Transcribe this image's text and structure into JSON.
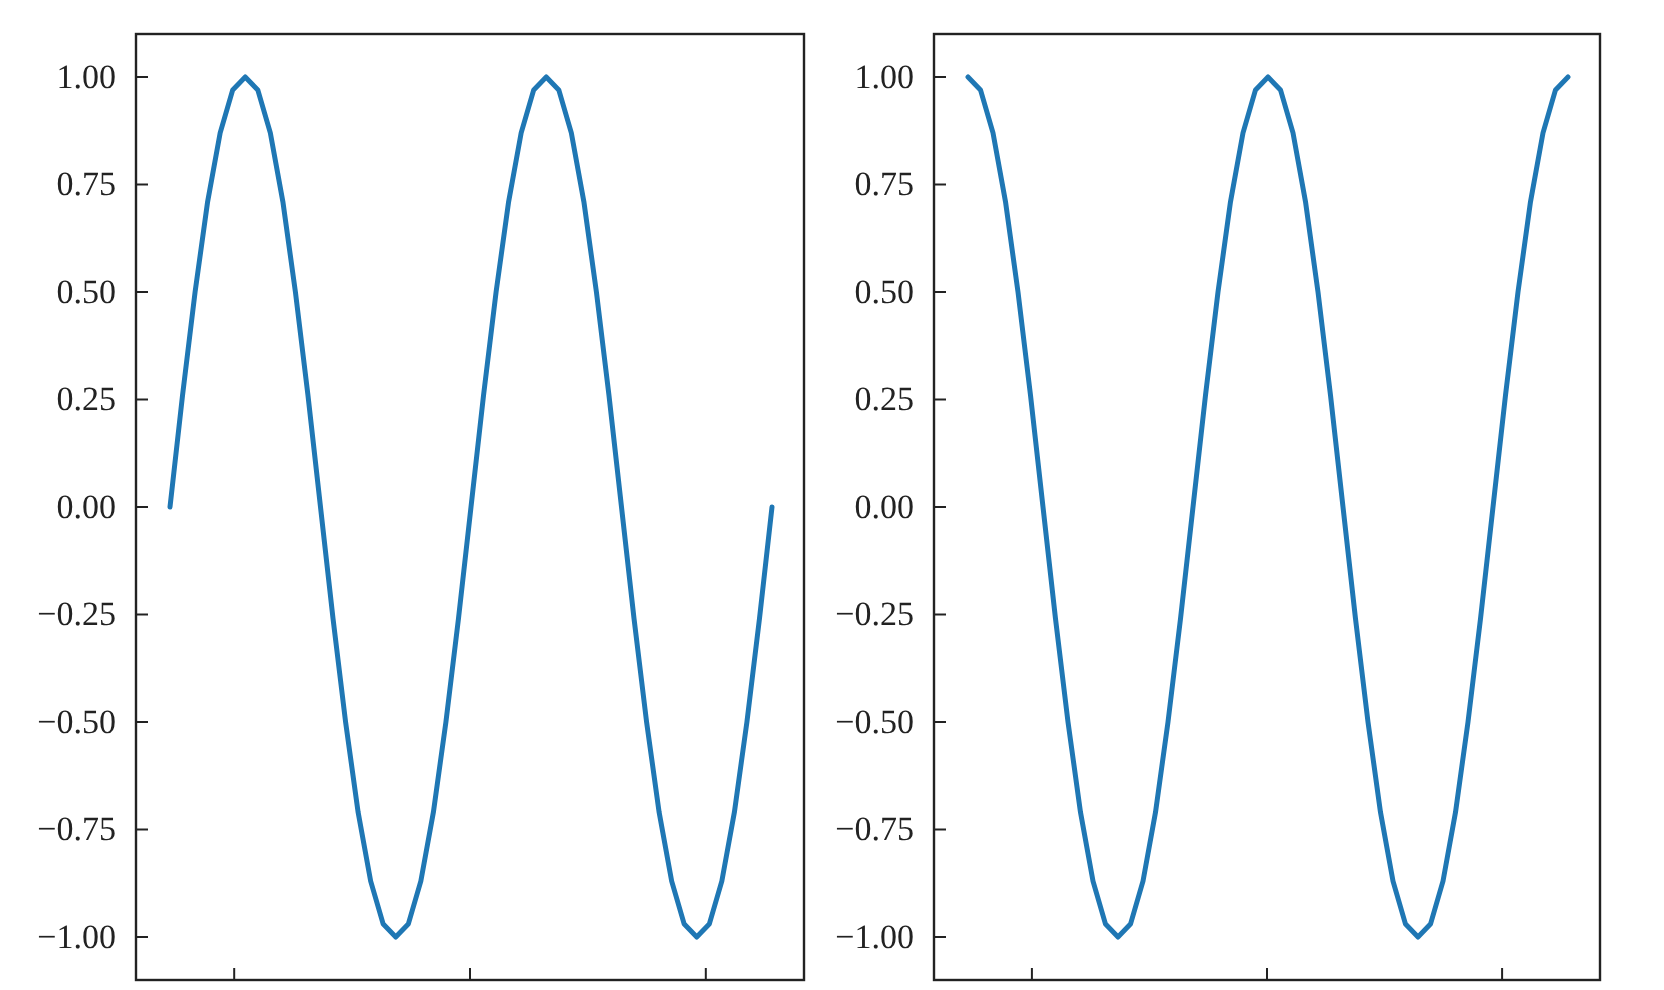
{
  "chart_data": [
    {
      "type": "line",
      "categories": [
        null,
        null,
        null,
        null,
        null,
        null,
        null,
        null,
        null,
        null,
        null,
        null,
        null,
        null,
        null,
        null,
        null,
        null,
        null,
        null,
        null,
        null,
        null,
        null,
        null,
        null,
        null,
        null,
        null,
        null,
        null,
        null,
        null,
        null,
        null,
        null,
        null,
        null,
        null,
        null,
        null,
        null,
        null,
        null,
        null,
        null,
        null,
        null,
        null
      ],
      "series": [
        {
          "color": "#1f77b4",
          "values": [
            0,
            0.26,
            0.5,
            0.71,
            0.87,
            0.97,
            1,
            0.97,
            0.87,
            0.71,
            0.5,
            0.26,
            0,
            -0.26,
            -0.5,
            -0.71,
            -0.87,
            -0.97,
            -1,
            -0.97,
            -0.87,
            -0.71,
            -0.5,
            -0.26,
            0,
            0.26,
            0.5,
            0.71,
            0.87,
            0.97,
            1,
            0.97,
            0.87,
            0.71,
            0.5,
            0.26,
            0,
            -0.26,
            -0.5,
            -0.71,
            -0.87,
            -0.97,
            -1,
            -0.97,
            -0.87,
            -0.71,
            -0.5,
            -0.26,
            0
          ]
        }
      ],
      "ylim": [
        -1.1,
        1.1
      ],
      "yticks": [
        {
          "value": -1,
          "label": "−1.00"
        },
        {
          "value": -0.75,
          "label": "−0.75"
        },
        {
          "value": -0.5,
          "label": "−0.50"
        },
        {
          "value": -0.25,
          "label": "−0.25"
        },
        {
          "value": 0,
          "label": "0.00"
        },
        {
          "value": 0.25,
          "label": "0.25"
        },
        {
          "value": 0.5,
          "label": "0.50"
        },
        {
          "value": 0.75,
          "label": "0.75"
        },
        {
          "value": 1,
          "label": "1.00"
        }
      ],
      "tick_labels": "y"
    },
    {
      "type": "line",
      "categories": [
        null,
        null,
        null,
        null,
        null,
        null,
        null,
        null,
        null,
        null,
        null,
        null,
        null,
        null,
        null,
        null,
        null,
        null,
        null,
        null,
        null,
        null,
        null,
        null,
        null,
        null,
        null,
        null,
        null,
        null,
        null,
        null,
        null,
        null,
        null,
        null,
        null,
        null,
        null,
        null,
        null,
        null,
        null,
        null,
        null,
        null,
        null,
        null,
        null
      ],
      "series": [
        {
          "color": "#1f77b4",
          "values": [
            1,
            0.97,
            0.87,
            0.71,
            0.5,
            0.26,
            0,
            -0.26,
            -0.5,
            -0.71,
            -0.87,
            -0.97,
            -1,
            -0.97,
            -0.87,
            -0.71,
            -0.5,
            -0.26,
            0,
            0.26,
            0.5,
            0.71,
            0.87,
            0.97,
            1,
            0.97,
            0.87,
            0.71,
            0.5,
            0.26,
            0,
            -0.26,
            -0.5,
            -0.71,
            -0.87,
            -0.97,
            -1,
            -0.97,
            -0.87,
            -0.71,
            -0.5,
            -0.26,
            0,
            0.26,
            0.5,
            0.71,
            0.87,
            0.97,
            1
          ]
        }
      ],
      "ylim": [
        -1.1,
        1.1
      ],
      "yticks": [
        {
          "value": -1,
          "label": "−1.00"
        },
        {
          "value": -0.75,
          "label": "−0.75"
        },
        {
          "value": -0.5,
          "label": "−0.50"
        },
        {
          "value": -0.25,
          "label": "−0.25"
        },
        {
          "value": 0,
          "label": "0.00"
        },
        {
          "value": 0.25,
          "label": "0.25"
        },
        {
          "value": 0.5,
          "label": "0.50"
        },
        {
          "value": 0.75,
          "label": "0.75"
        },
        {
          "value": 1,
          "label": "1.00"
        }
      ],
      "tick_labels": "y"
    }
  ]
}
